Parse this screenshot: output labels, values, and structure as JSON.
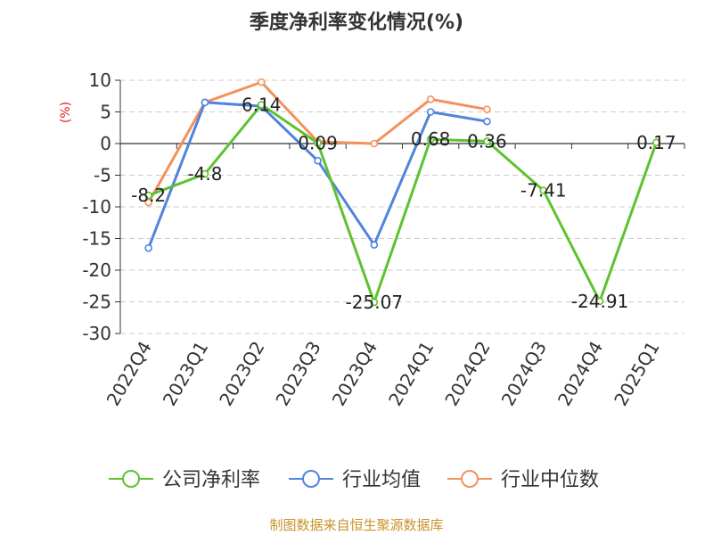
{
  "chart_data": {
    "type": "line",
    "title": "季度净利率变化情况(%)",
    "ylabel": "(%)",
    "source": "制图数据来自恒生聚源数据库",
    "categories": [
      "2022Q4",
      "2023Q1",
      "2023Q2",
      "2023Q3",
      "2023Q4",
      "2024Q1",
      "2024Q2",
      "2024Q3",
      "2024Q4",
      "2025Q1"
    ],
    "ylim": [
      -30,
      10
    ],
    "yticks": [
      10,
      5,
      0,
      -5,
      -10,
      -15,
      -20,
      -25,
      -30
    ],
    "grid": true,
    "legend_position": "bottom",
    "series": [
      {
        "name": "公司净利率",
        "color": "#5ec22f",
        "values": [
          -8.2,
          -4.8,
          6.14,
          0.09,
          -25.07,
          0.68,
          0.36,
          -7.41,
          -24.91,
          0.17
        ],
        "labels": [
          "-8.2",
          "-4.8",
          "6.14",
          "0.09",
          "-25.07",
          "0.68",
          "0.36",
          "-7.41",
          "-24.91",
          "0.17"
        ]
      },
      {
        "name": "行业均值",
        "color": "#5283dd",
        "values": [
          -16.5,
          6.5,
          5.9,
          -2.7,
          -16.0,
          5.0,
          3.5,
          null,
          null,
          null
        ]
      },
      {
        "name": "行业中位数",
        "color": "#f4905e",
        "values": [
          -9.3,
          6.5,
          9.7,
          0.3,
          0.0,
          7.0,
          5.4,
          null,
          null,
          null
        ]
      }
    ]
  },
  "colors": {
    "title": "#333333",
    "axis": "#333333",
    "grid": "#cccccc",
    "ylabel": "#e02020",
    "source": "#c8922a"
  }
}
